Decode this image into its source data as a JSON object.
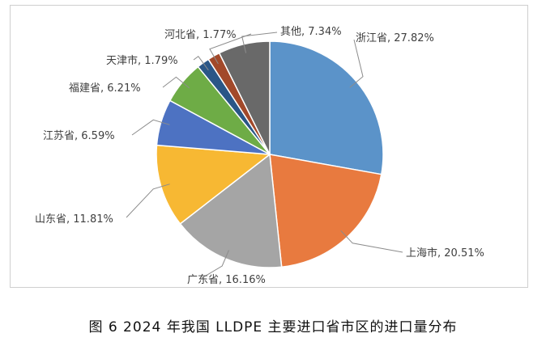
{
  "chart_data": {
    "type": "pie",
    "title": "",
    "series": [
      {
        "label": "浙江省",
        "value": 27.82,
        "display": "浙江省, 27.82%",
        "color": "#5b93c9"
      },
      {
        "label": "上海市",
        "value": 20.51,
        "display": "上海市, 20.51%",
        "color": "#e87a3f"
      },
      {
        "label": "广东省",
        "value": 16.16,
        "display": "广东省, 16.16%",
        "color": "#a5a5a5"
      },
      {
        "label": "山东省",
        "value": 11.81,
        "display": "山东省, 11.81%",
        "color": "#f7b833"
      },
      {
        "label": "江苏省",
        "value": 6.59,
        "display": "江苏省, 6.59%",
        "color": "#4d72c2"
      },
      {
        "label": "福建省",
        "value": 6.21,
        "display": "福建省, 6.21%",
        "color": "#6eac46"
      },
      {
        "label": "天津市",
        "value": 1.79,
        "display": "天津市, 1.79%",
        "color": "#2a5687"
      },
      {
        "label": "河北省",
        "value": 1.77,
        "display": "河北省, 1.77%",
        "color": "#a2492a"
      },
      {
        "label": "其他",
        "value": 7.34,
        "display": "其他, 7.34%",
        "color": "#696969"
      }
    ]
  },
  "caption": "图 6 2024 年我国 LLDPE 主要进口省市区的进口量分布"
}
